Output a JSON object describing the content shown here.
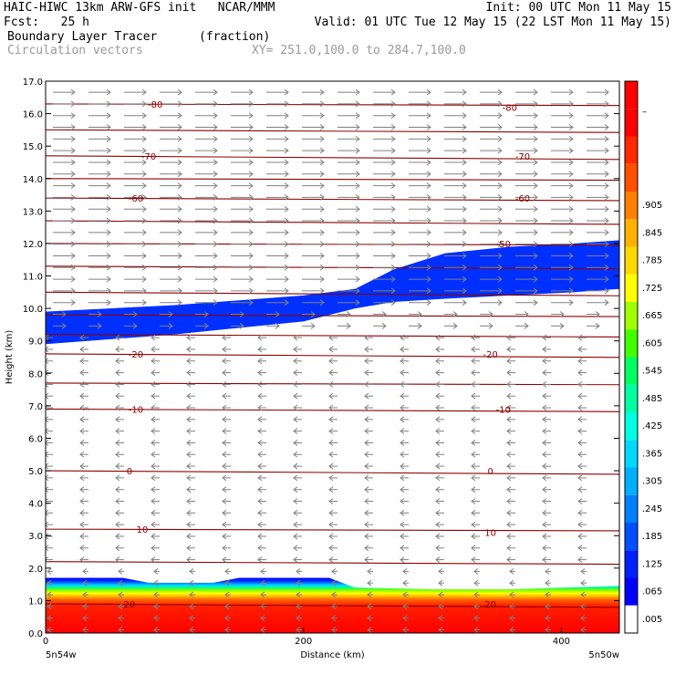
{
  "header": {
    "line1_left": "HAIC-HIWC 13km ARW-GFS init   NCAR/MMM",
    "line1_right": "Init: 00 UTC Mon 11 May 15",
    "fcst": "Fcst:   25 h",
    "valid": "Valid: 01 UTC Tue 12 May 15 (22 LST Mon 11 May 15)",
    "field1_name": "Boundary Layer Tracer",
    "field1_units": "(fraction)",
    "field2_name": "Circulation vectors",
    "xsec": "XY= 251.0,100.0 to 284.7,100.0"
  },
  "chart_data": {
    "type": "heatmap",
    "ylabel": "Height (km)",
    "xlabel": "Distance (km)",
    "x_left_label": "5n54w",
    "x_right_label": "5n50w",
    "ylim": [
      0,
      17
    ],
    "xlim": [
      0,
      445
    ],
    "y_ticks": [
      "0.0",
      "1.0",
      "2.0",
      "3.0",
      "4.0",
      "5.0",
      "6.0",
      "7.0",
      "8.0",
      "9.0",
      "10.0",
      "11.0",
      "12.0",
      "13.0",
      "14.0",
      "15.0",
      "16.0",
      "17.0"
    ],
    "x_ticks": [
      "0",
      "200",
      "400"
    ],
    "colorbar_labels": [
      ".005",
      ".065",
      ".125",
      ".185",
      ".245",
      ".305",
      ".365",
      ".425",
      ".485",
      ".545",
      ".605",
      ".665",
      ".725",
      ".785",
      ".845",
      ".905",
      "–"
    ],
    "colorbar_colors": [
      "#ffffff",
      "#0000ff",
      "#0020ff",
      "#0050ff",
      "#0080ff",
      "#00b0ff",
      "#00d8ff",
      "#00ffe0",
      "#00ffa0",
      "#00ff60",
      "#40ff00",
      "#a0ff00",
      "#ffff00",
      "#ffd800",
      "#ffb000",
      "#ff8000",
      "#ff5000",
      "#ff2800",
      "#ff0000",
      "#ff0000"
    ],
    "contour_labels": [
      {
        "text": "-80",
        "x": 85,
        "y": 16.3
      },
      {
        "text": "-80",
        "x": 360,
        "y": 16.2
      },
      {
        "text": "-70",
        "x": 80,
        "y": 14.7
      },
      {
        "text": "-70",
        "x": 370,
        "y": 14.7
      },
      {
        "text": "-60",
        "x": 70,
        "y": 13.4
      },
      {
        "text": "-60",
        "x": 370,
        "y": 13.4
      },
      {
        "text": "-50",
        "x": 355,
        "y": 12.0
      },
      {
        "text": "-20",
        "x": 70,
        "y": 8.6
      },
      {
        "text": "-20",
        "x": 345,
        "y": 8.6
      },
      {
        "text": "-10",
        "x": 70,
        "y": 6.9
      },
      {
        "text": "-10",
        "x": 355,
        "y": 6.9
      },
      {
        "text": "0",
        "x": 65,
        "y": 5.0
      },
      {
        "text": "0",
        "x": 345,
        "y": 5.0
      },
      {
        "text": "10",
        "x": 75,
        "y": 3.2
      },
      {
        "text": "10",
        "x": 345,
        "y": 3.1
      },
      {
        "text": "20",
        "x": 65,
        "y": 0.9
      },
      {
        "text": "20",
        "x": 345,
        "y": 0.9
      }
    ],
    "tracer_upper_layer": {
      "x": [
        0,
        100,
        200,
        240,
        270,
        310,
        360,
        410,
        445
      ],
      "bottom": [
        8.9,
        9.2,
        9.6,
        10.0,
        10.2,
        10.3,
        10.4,
        10.5,
        10.6
      ],
      "top": [
        9.9,
        10.1,
        10.4,
        10.6,
        11.2,
        11.7,
        11.9,
        12.0,
        12.1
      ],
      "value": 0.065
    },
    "tracer_boundary_layer": {
      "x": [
        0,
        60,
        80,
        130,
        150,
        220,
        240,
        300,
        360,
        445
      ],
      "top": [
        1.7,
        1.7,
        1.55,
        1.55,
        1.7,
        1.7,
        1.4,
        1.35,
        1.35,
        1.45
      ]
    },
    "wind_upper": "eastward",
    "wind_lower": "westward"
  }
}
